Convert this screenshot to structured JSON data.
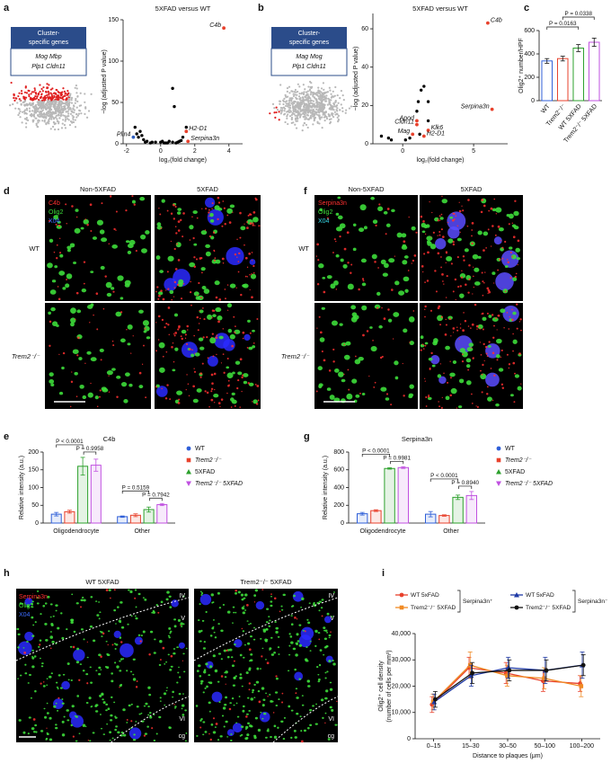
{
  "panel_labels": [
    "a",
    "b",
    "c",
    "d",
    "e",
    "f",
    "g",
    "h",
    "i"
  ],
  "gene_boxes": [
    {
      "title": [
        "Cluster-",
        "specific genes"
      ],
      "genes": [
        "Mog Mbp",
        "Plp1 Cldn11"
      ]
    },
    {
      "title": [
        "Cluster-",
        "specific genes"
      ],
      "genes": [
        "Mag Mog",
        "Plp1 Cldn11"
      ]
    }
  ],
  "microscopy": {
    "d": {
      "columns": [
        "Non-5XFAD",
        "5XFAD"
      ],
      "rows": [
        "WT",
        "Trem2⁻/⁻"
      ],
      "channels": [
        {
          "label": "C4b",
          "color": "#ff3030"
        },
        {
          "label": "Olig2",
          "color": "#3ddc3a"
        },
        {
          "label": "X04",
          "color": "#3c6cff"
        }
      ]
    },
    "f": {
      "columns": [
        "Non-5XFAD",
        "5XFAD"
      ],
      "rows": [
        "WT",
        "Trem2⁻/⁻"
      ],
      "channels": [
        {
          "label": "Serpina3n",
          "color": "#ff3030"
        },
        {
          "label": "Olig2",
          "color": "#3ddc3a"
        },
        {
          "label": "X04",
          "color": "#36d8e8"
        }
      ]
    },
    "h": {
      "columns": [
        "WT 5XFAD",
        "Trem2⁻/⁻ 5XFAD"
      ],
      "channels": [
        {
          "label": "Serpina3n",
          "color": "#ff3030"
        },
        {
          "label": "Olig2",
          "color": "#3ddc3a"
        },
        {
          "label": "X04",
          "color": "#3c6cff"
        }
      ],
      "layers": [
        "IV",
        "V",
        "VI",
        "cg"
      ]
    }
  },
  "chart_data": [
    {
      "type": "volcano",
      "title": "5XFAD versus WT",
      "xlabel": "log₂(fold change)",
      "ylabel": "−log (adjusted P value)",
      "xlim": [
        -2.2,
        4.8
      ],
      "ylim": [
        0,
        150
      ],
      "xticks": [
        -2,
        0,
        2,
        4
      ],
      "yticks": [
        0,
        50,
        100,
        150
      ],
      "color": "#000000",
      "x": [
        0.7,
        0.8,
        1.5,
        1.3,
        -1.5,
        -1.2,
        -1.3,
        -1.0,
        -0.8,
        -0.5,
        -0.3,
        0,
        0.2,
        0.5,
        0.7,
        1.0,
        -1.4,
        -1.1,
        1.2,
        0.9,
        -0.6,
        0.3,
        -0.9,
        0.1,
        0.4,
        1.1
      ],
      "values": [
        67,
        45,
        20,
        8,
        20,
        15,
        8,
        5,
        3,
        2,
        2,
        2,
        1,
        3,
        2,
        2,
        12,
        10,
        4,
        1,
        1,
        1,
        2,
        3,
        1,
        3
      ],
      "labeled_points": [
        {
          "label": "C4b",
          "x": 3.7,
          "y": 140,
          "color": "#e8412c"
        },
        {
          "label": "Plin4",
          "x": -1.6,
          "y": 8,
          "color": "#3060c0"
        },
        {
          "label": "H2-D1",
          "x": 1.5,
          "y": 15,
          "color": "#e8412c"
        },
        {
          "label": "Serpina3n",
          "x": 1.6,
          "y": 3,
          "color": "#e8412c"
        }
      ]
    },
    {
      "type": "volcano",
      "title": "5XFAD versus WT",
      "xlabel": "log₂(fold change)",
      "ylabel": "−log (adjusted P value)",
      "xlim": [
        -2.1,
        7.4
      ],
      "ylim": [
        0,
        68
      ],
      "xticks": [
        0,
        5
      ],
      "yticks": [
        0,
        20,
        40,
        60
      ],
      "color": "#000000",
      "x": [
        1.5,
        1.3,
        1.8,
        1.1,
        1.0,
        -1.5,
        -0.8,
        -1.0,
        0.2,
        0.5,
        1.2,
        1.8
      ],
      "values": [
        30,
        28,
        22,
        22,
        17,
        4,
        2,
        3,
        2,
        3,
        5,
        12
      ],
      "labeled_points": [
        {
          "label": "C4b",
          "x": 6,
          "y": 63,
          "color": "#e8412c"
        },
        {
          "label": "Serpina3n",
          "x": 6.3,
          "y": 18,
          "color": "#e8412c"
        },
        {
          "label": "Apod",
          "x": 1,
          "y": 12,
          "color": "#e8412c"
        },
        {
          "label": "Cldn11",
          "x": 1,
          "y": 10,
          "color": "#e8412c"
        },
        {
          "label": "Klk6",
          "x": 1.8,
          "y": 7,
          "color": "#e8412c"
        },
        {
          "label": "Mag",
          "x": 0.7,
          "y": 5,
          "color": "#e8412c"
        },
        {
          "label": "H2-D1",
          "x": 1.5,
          "y": 4,
          "color": "#e8412c"
        }
      ]
    },
    {
      "type": "bar",
      "ylabel": "Olig2⁺ number/HPF",
      "categories": [
        "WT",
        "Trem2⁻/⁻",
        "WT 5XFAD",
        "Trem2⁻/⁻ 5XFAD"
      ],
      "values": [
        340,
        360,
        450,
        500
      ],
      "errors": [
        20,
        20,
        30,
        35
      ],
      "colors": [
        "#2f5fd8",
        "#e8412c",
        "#2ca02c",
        "#c050e0"
      ],
      "ylim": [
        0,
        600
      ],
      "yticks": [
        0,
        200,
        400,
        600
      ],
      "annotations": [
        "P = 0.0163",
        "P = 0.0338"
      ]
    },
    {
      "type": "grouped_bar",
      "title": "C4b",
      "ylabel": "Relative intensity (a.u.)",
      "categories": [
        "Oligodendrocyte",
        "Other"
      ],
      "ylim": [
        0,
        200
      ],
      "yticks": [
        0,
        50,
        100,
        150,
        200
      ],
      "series": [
        {
          "name": "WT",
          "color": "#2f5fd8",
          "marker": "circle",
          "values": [
            25,
            18
          ],
          "errors": [
            5,
            2
          ]
        },
        {
          "name": "Trem2⁻/⁻",
          "color": "#e8412c",
          "marker": "square",
          "values": [
            32,
            22
          ],
          "errors": [
            4,
            4
          ]
        },
        {
          "name": "5XFAD",
          "color": "#2ca02c",
          "marker": "triangle",
          "values": [
            160,
            38
          ],
          "errors": [
            25,
            7
          ]
        },
        {
          "name": "Trem2⁻/⁻ 5XFAD",
          "color": "#c050e0",
          "marker": "triangle-down",
          "values": [
            163,
            52
          ],
          "errors": [
            17,
            3
          ]
        }
      ],
      "annotations": [
        "P < 0.0001",
        "P = 0.9958",
        "P = 0.5159",
        "P = 0.7942"
      ]
    },
    {
      "type": "grouped_bar",
      "title": "Serpina3n",
      "ylabel": "Relative intensity (a.u.)",
      "categories": [
        "Oligodendrocyte",
        "Other"
      ],
      "ylim": [
        0,
        800
      ],
      "yticks": [
        0,
        200,
        400,
        600,
        800
      ],
      "series": [
        {
          "name": "WT",
          "color": "#2f5fd8",
          "marker": "circle",
          "values": [
            105,
            100
          ],
          "errors": [
            15,
            30
          ]
        },
        {
          "name": "Trem2⁻/⁻",
          "color": "#e8412c",
          "marker": "square",
          "values": [
            140,
            85
          ],
          "errors": [
            10,
            8
          ]
        },
        {
          "name": "5XFAD",
          "color": "#2ca02c",
          "marker": "triangle",
          "values": [
            615,
            290
          ],
          "errors": [
            8,
            25
          ]
        },
        {
          "name": "Trem2⁻/⁻ 5XFAD",
          "color": "#c050e0",
          "marker": "triangle-down",
          "values": [
            625,
            310
          ],
          "errors": [
            10,
            45
          ]
        }
      ],
      "annotations": [
        "P < 0.0001",
        "P = 0.9981",
        "P < 0.0001",
        "P = 0.8940"
      ]
    },
    {
      "type": "line",
      "ylabel": [
        "Olig2⁺ cell density",
        "(number of cells per mm³)"
      ],
      "xlabel": "Distance to plaques (μm)",
      "categories": [
        "0–15",
        "15–30",
        "30–50",
        "50–100",
        "100–200"
      ],
      "ylim": [
        0,
        40000
      ],
      "yticks": [
        0,
        {
          "value": 10000,
          "label": "10,000"
        },
        {
          "value": 20000,
          "label": "20,000"
        },
        {
          "value": 30000,
          "label": "30,000"
        },
        {
          "value": 40000,
          "label": "40,000"
        }
      ],
      "legend_groups": [
        "Serpina3n⁺",
        "Serpina3n⁻"
      ],
      "series": [
        {
          "name": "WT 5xFAD",
          "color": "#e8412c",
          "marker": "circle",
          "values": [
            13000,
            27000,
            25000,
            22000,
            21000
          ],
          "errors": [
            3000,
            4000,
            4000,
            4000,
            3000
          ]
        },
        {
          "name": "Trem2⁻/⁻ 5XFAD",
          "color": "#f08a24",
          "marker": "square",
          "values": [
            14000,
            28000,
            24000,
            23000,
            20000
          ],
          "errors": [
            3000,
            5000,
            4000,
            4000,
            4000
          ]
        },
        {
          "name": "WT 5xFAD",
          "color": "#1f3aa6",
          "marker": "triangle",
          "values": [
            14000,
            24000,
            27000,
            26000,
            28000
          ],
          "errors": [
            3000,
            4000,
            4000,
            5000,
            5000
          ]
        },
        {
          "name": "Trem2⁻/⁻ 5XFAD",
          "color": "#111111",
          "marker": "circle",
          "values": [
            15000,
            25000,
            26000,
            26000,
            28000
          ],
          "errors": [
            3000,
            4000,
            4000,
            4000,
            4000
          ]
        }
      ]
    }
  ]
}
